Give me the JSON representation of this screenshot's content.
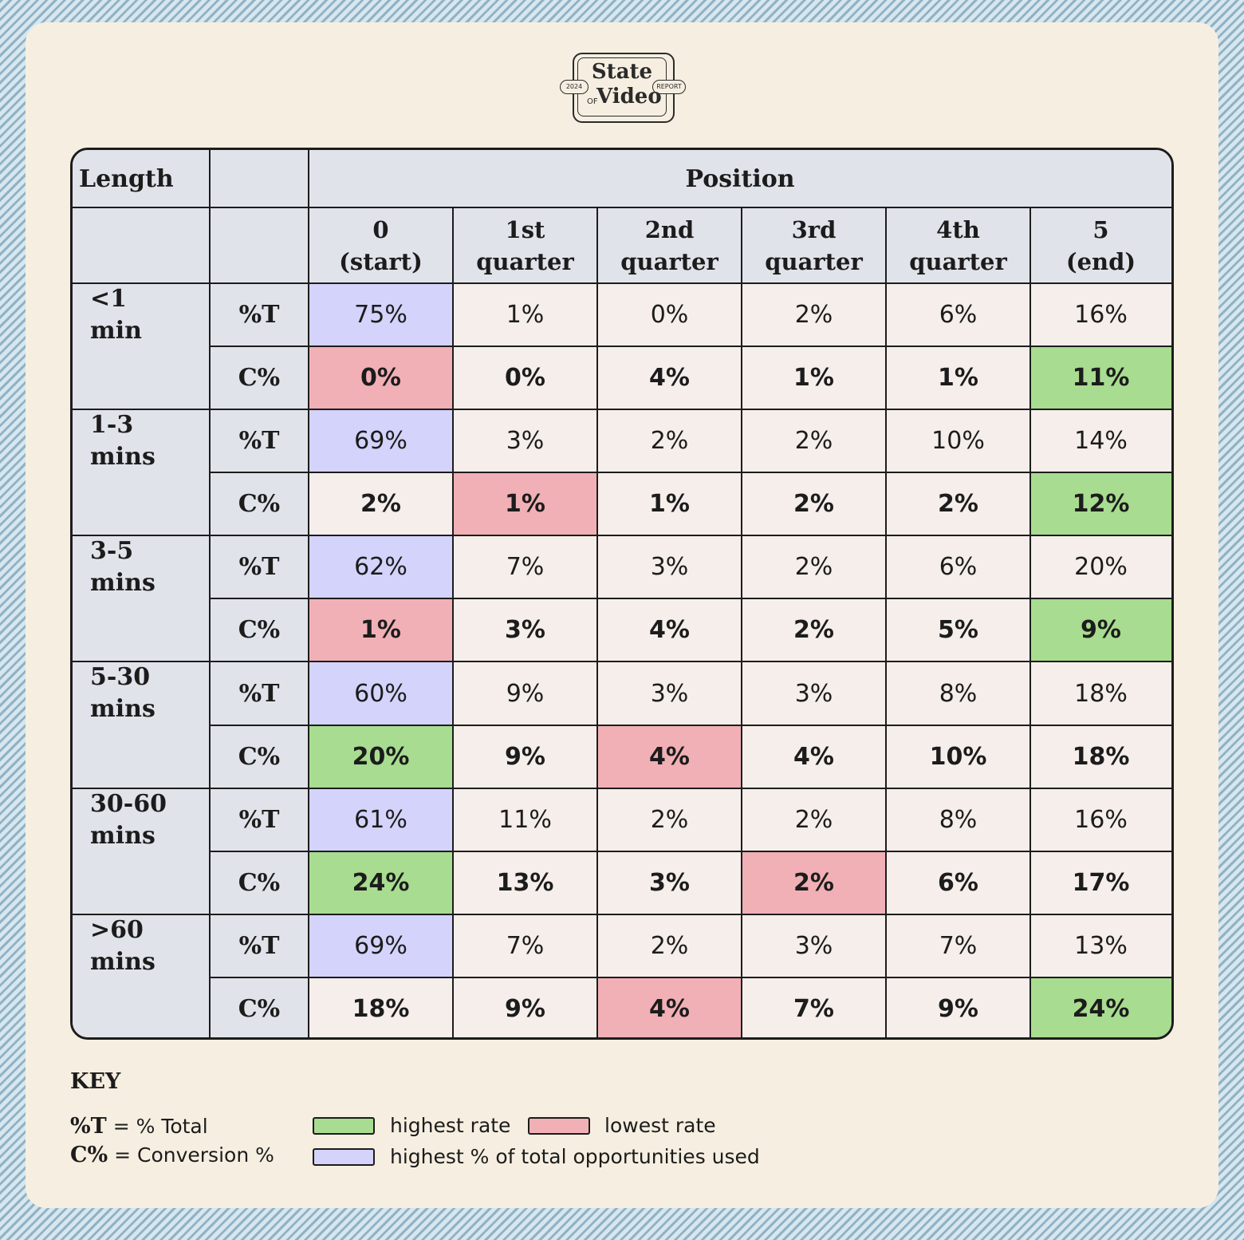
{
  "logo": {
    "year": "2024",
    "line1": "State",
    "of": "OF",
    "line2": "Video",
    "tag": "REPORT"
  },
  "header": {
    "length_label": "Length",
    "position_label": "Position"
  },
  "columns": [
    [
      "0",
      "(start)"
    ],
    [
      "1st",
      "quarter"
    ],
    [
      "2nd",
      "quarter"
    ],
    [
      "3rd",
      "quarter"
    ],
    [
      "4th",
      "quarter"
    ],
    [
      "5",
      "(end)"
    ]
  ],
  "metrics": {
    "total": "%T",
    "conversion": "C%"
  },
  "chart_data": {
    "type": "table",
    "row_groups": [
      {
        "label": [
          "<1",
          "min"
        ],
        "total": [
          "75%",
          "1%",
          "0%",
          "2%",
          "6%",
          "16%"
        ],
        "conversion": [
          "0%",
          "0%",
          "4%",
          "1%",
          "1%",
          "11%"
        ],
        "total_highlight": [
          "blue",
          "",
          "",
          "",
          "",
          ""
        ],
        "conversion_highlight": [
          "red",
          "",
          "",
          "",
          "",
          "green"
        ]
      },
      {
        "label": [
          "1-3",
          "mins"
        ],
        "total": [
          "69%",
          "3%",
          "2%",
          "2%",
          "10%",
          "14%"
        ],
        "conversion": [
          "2%",
          "1%",
          "1%",
          "2%",
          "2%",
          "12%"
        ],
        "total_highlight": [
          "blue",
          "",
          "",
          "",
          "",
          ""
        ],
        "conversion_highlight": [
          "",
          "red",
          "",
          "",
          "",
          "green"
        ]
      },
      {
        "label": [
          "3-5",
          "mins"
        ],
        "total": [
          "62%",
          "7%",
          "3%",
          "2%",
          "6%",
          "20%"
        ],
        "conversion": [
          "1%",
          "3%",
          "4%",
          "2%",
          "5%",
          "9%"
        ],
        "total_highlight": [
          "blue",
          "",
          "",
          "",
          "",
          ""
        ],
        "conversion_highlight": [
          "red",
          "",
          "",
          "",
          "",
          "green"
        ]
      },
      {
        "label": [
          "5-30",
          "mins"
        ],
        "total": [
          "60%",
          "9%",
          "3%",
          "3%",
          "8%",
          "18%"
        ],
        "conversion": [
          "20%",
          "9%",
          "4%",
          "4%",
          "10%",
          "18%"
        ],
        "total_highlight": [
          "blue",
          "",
          "",
          "",
          "",
          ""
        ],
        "conversion_highlight": [
          "green",
          "",
          "red",
          "",
          "",
          ""
        ]
      },
      {
        "label": [
          "30-60",
          "mins"
        ],
        "total": [
          "61%",
          "11%",
          "2%",
          "2%",
          "8%",
          "16%"
        ],
        "conversion": [
          "24%",
          "13%",
          "3%",
          "2%",
          "6%",
          "17%"
        ],
        "total_highlight": [
          "blue",
          "",
          "",
          "",
          "",
          ""
        ],
        "conversion_highlight": [
          "green",
          "",
          "",
          "red",
          "",
          ""
        ]
      },
      {
        "label": [
          ">60",
          "mins"
        ],
        "total": [
          "69%",
          "7%",
          "2%",
          "3%",
          "7%",
          "13%"
        ],
        "conversion": [
          "18%",
          "9%",
          "4%",
          "7%",
          "9%",
          "24%"
        ],
        "total_highlight": [
          "blue",
          "",
          "",
          "",
          "",
          ""
        ],
        "conversion_highlight": [
          "",
          "",
          "red",
          "",
          "",
          "green"
        ]
      }
    ]
  },
  "colors": {
    "highest": "#a8dc90",
    "lowest": "#f1b0b6",
    "most_used": "#d4d3fb",
    "header": "#e0e3ea"
  },
  "key": {
    "title": "KEY",
    "t_abbr": "%T",
    "t_desc": "= % Total",
    "c_abbr": "C%",
    "c_desc": "= Conversion %",
    "highest": "highest rate",
    "lowest": "lowest rate",
    "most_used": "highest % of total opportunities used"
  }
}
